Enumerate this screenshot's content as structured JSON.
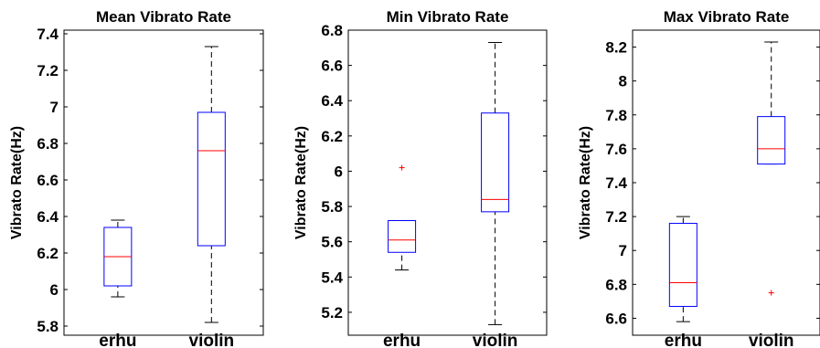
{
  "chart_data": [
    {
      "type": "box",
      "title": "Mean Vibrato Rate",
      "ylabel": "Vibrato Rate(Hz)",
      "ylim": [
        5.75,
        7.42
      ],
      "yticks": [
        "5.8",
        "6",
        "6.2",
        "6.4",
        "6.6",
        "6.8",
        "7",
        "7.2",
        "7.4"
      ],
      "categories": [
        "erhu",
        "violin"
      ],
      "boxes": [
        {
          "category": "erhu",
          "whisker_low": 5.96,
          "q1": 6.02,
          "median": 6.18,
          "q3": 6.34,
          "whisker_high": 6.38,
          "outliers": []
        },
        {
          "category": "violin",
          "whisker_low": 5.82,
          "q1": 6.24,
          "median": 6.76,
          "q3": 6.97,
          "whisker_high": 7.33,
          "outliers": []
        }
      ]
    },
    {
      "type": "box",
      "title": "Min Vibrato Rate",
      "ylabel": "Vibrato Rate(Hz)",
      "ylim": [
        5.07,
        6.8
      ],
      "yticks": [
        "5.2",
        "5.4",
        "5.6",
        "5.8",
        "6",
        "6.2",
        "6.4",
        "6.6",
        "6.8"
      ],
      "categories": [
        "erhu",
        "violin"
      ],
      "boxes": [
        {
          "category": "erhu",
          "whisker_low": 5.44,
          "q1": 5.54,
          "median": 5.61,
          "q3": 5.72,
          "whisker_high": 5.72,
          "outliers": [
            6.02
          ]
        },
        {
          "category": "violin",
          "whisker_low": 5.13,
          "q1": 5.77,
          "median": 5.84,
          "q3": 6.33,
          "whisker_high": 6.73,
          "outliers": []
        }
      ]
    },
    {
      "type": "box",
      "title": "Max Vibrato Rate",
      "ylabel": "Vibrato Rate(Hz)",
      "ylim": [
        6.5,
        8.3
      ],
      "yticks": [
        "6.6",
        "6.8",
        "7",
        "7.2",
        "7.4",
        "7.6",
        "7.8",
        "8",
        "8.2"
      ],
      "categories": [
        "erhu",
        "violin"
      ],
      "boxes": [
        {
          "category": "erhu",
          "whisker_low": 6.58,
          "q1": 6.67,
          "median": 6.81,
          "q3": 7.16,
          "whisker_high": 7.2,
          "outliers": []
        },
        {
          "category": "violin",
          "whisker_low": 7.51,
          "q1": 7.51,
          "median": 7.6,
          "q3": 7.79,
          "whisker_high": 8.23,
          "outliers": [
            6.75
          ]
        }
      ]
    }
  ],
  "colors": {
    "box": "#0000ff",
    "median": "#ff0000",
    "whisker": "#000000",
    "outlier": "#ff0000",
    "axes": "#000000"
  }
}
